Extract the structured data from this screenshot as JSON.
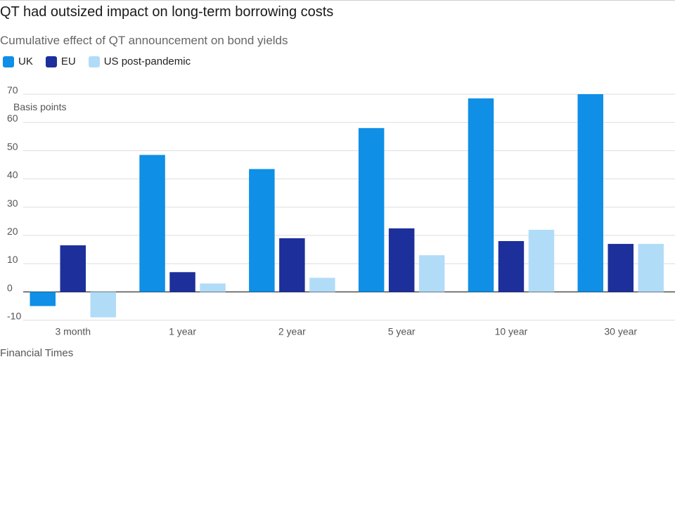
{
  "title": "QT had outsized impact on long-term borrowing costs",
  "subtitle": "Cumulative effect of QT announcement on bond yields",
  "source": "Financial Times",
  "colors": {
    "UK": "#0f8fe6",
    "EU": "#1d2f9b",
    "US post-pandemic": "#b1dcf8",
    "grid": "#dddddd",
    "zero": "#333333",
    "text": "#555555"
  },
  "chart_data": {
    "type": "bar",
    "title": "QT had outsized impact on long-term borrowing costs",
    "subtitle": "Cumulative effect of QT announcement on bond yields",
    "ylabel": "Basis points",
    "xlabel": "",
    "ylim": [
      -10,
      70
    ],
    "yticks": [
      70,
      60,
      50,
      40,
      30,
      20,
      10,
      0,
      -10
    ],
    "grid": true,
    "legend_position": "top-left",
    "categories": [
      "3 month",
      "1 year",
      "2 year",
      "5 year",
      "10 year",
      "30 year"
    ],
    "series": [
      {
        "name": "UK",
        "values": [
          -5,
          48.5,
          43.5,
          58,
          68.5,
          70
        ]
      },
      {
        "name": "EU",
        "values": [
          16.5,
          7,
          19,
          22.5,
          18,
          17
        ]
      },
      {
        "name": "US post-pandemic",
        "values": [
          -9,
          3,
          5,
          13,
          22,
          17
        ]
      }
    ]
  }
}
